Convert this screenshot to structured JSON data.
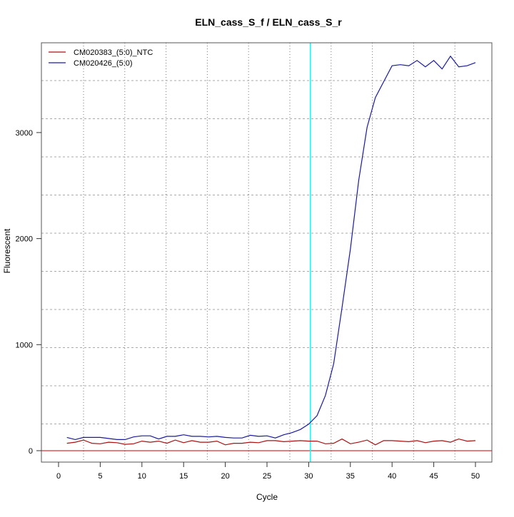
{
  "chart_data": {
    "type": "line",
    "title": "ELN_cass_S_f / ELN_cass_S_r",
    "xlabel": "Cycle",
    "ylabel": "Fluorescent",
    "xlim": [
      -2,
      52
    ],
    "ylim": [
      -100,
      3850
    ],
    "xticks": [
      0,
      5,
      10,
      15,
      20,
      25,
      30,
      35,
      40,
      45,
      50
    ],
    "yticks": [
      0,
      1000,
      2000,
      3000
    ],
    "grid": true,
    "legend_position": "top-left",
    "threshold_cycle": 30.2,
    "baseline_value": 0,
    "colors": {
      "threshold": "#00ffff",
      "baseline": "#cc0000"
    },
    "x": [
      1,
      2,
      3,
      4,
      5,
      6,
      7,
      8,
      9,
      10,
      11,
      12,
      13,
      14,
      15,
      16,
      17,
      18,
      19,
      20,
      21,
      22,
      23,
      24,
      25,
      26,
      27,
      28,
      29,
      30,
      31,
      32,
      33,
      34,
      35,
      36,
      37,
      38,
      39,
      40,
      41,
      42,
      43,
      44,
      45,
      46,
      47,
      48,
      49,
      50
    ],
    "series": [
      {
        "name": "CM020383_(5:0)_NTC",
        "color": "#aa1111",
        "values": [
          70,
          80,
          100,
          70,
          65,
          80,
          75,
          60,
          65,
          90,
          80,
          90,
          70,
          100,
          75,
          95,
          80,
          80,
          90,
          55,
          70,
          70,
          80,
          75,
          95,
          95,
          85,
          90,
          95,
          90,
          90,
          65,
          70,
          110,
          65,
          80,
          100,
          55,
          95,
          95,
          90,
          85,
          95,
          75,
          90,
          95,
          80,
          110,
          90,
          95
        ]
      },
      {
        "name": "CM020426_(5:0)",
        "color": "#1a1aa0",
        "values": [
          125,
          105,
          125,
          125,
          125,
          115,
          105,
          105,
          130,
          140,
          140,
          110,
          135,
          135,
          150,
          135,
          135,
          130,
          135,
          125,
          120,
          120,
          145,
          135,
          140,
          120,
          150,
          170,
          200,
          250,
          330,
          520,
          820,
          1350,
          1900,
          2550,
          3050,
          3330,
          3480,
          3630,
          3640,
          3630,
          3680,
          3620,
          3680,
          3600,
          3720,
          3620,
          3630,
          3660
        ]
      }
    ]
  }
}
